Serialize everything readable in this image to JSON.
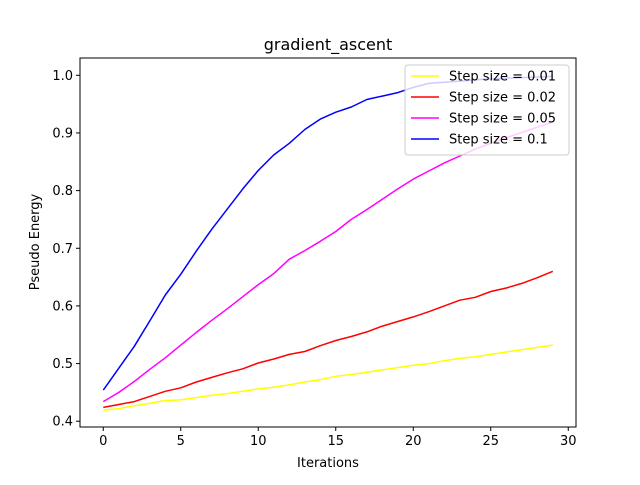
{
  "chart_data": {
    "type": "line",
    "title": "gradient_ascent",
    "xlabel": "Iterations",
    "ylabel": "Pseudo Energy",
    "xlim": [
      -1.5,
      30.5
    ],
    "ylim": [
      0.39,
      1.03
    ],
    "xticks": [
      0,
      5,
      10,
      15,
      20,
      25,
      30
    ],
    "yticks": [
      0.4,
      0.5,
      0.6,
      0.7,
      0.8,
      0.9,
      1.0
    ],
    "xtick_labels": [
      "0",
      "5",
      "10",
      "15",
      "20",
      "25",
      "30"
    ],
    "ytick_labels": [
      "0.4",
      "0.5",
      "0.6",
      "0.7",
      "0.8",
      "0.9",
      "1.0"
    ],
    "grid": false,
    "legend_position": "top-right",
    "x": [
      0,
      1,
      2,
      3,
      4,
      5,
      6,
      7,
      8,
      9,
      10,
      11,
      12,
      13,
      14,
      15,
      16,
      17,
      18,
      19,
      20,
      21,
      22,
      23,
      24,
      25,
      26,
      27,
      28,
      29
    ],
    "series": [
      {
        "name": "Step size = 0.01",
        "color": "#ffff00",
        "values": [
          0.419,
          0.422,
          0.427,
          0.431,
          0.436,
          0.437,
          0.441,
          0.445,
          0.448,
          0.452,
          0.456,
          0.459,
          0.463,
          0.468,
          0.472,
          0.478,
          0.481,
          0.485,
          0.489,
          0.493,
          0.497,
          0.5,
          0.505,
          0.509,
          0.512,
          0.516,
          0.52,
          0.524,
          0.528,
          0.532
        ]
      },
      {
        "name": "Step size = 0.02",
        "color": "#ff0000",
        "values": [
          0.424,
          0.429,
          0.434,
          0.443,
          0.452,
          0.458,
          0.468,
          0.476,
          0.484,
          0.491,
          0.501,
          0.508,
          0.516,
          0.521,
          0.531,
          0.54,
          0.547,
          0.555,
          0.565,
          0.573,
          0.581,
          0.59,
          0.6,
          0.61,
          0.615,
          0.625,
          0.631,
          0.639,
          0.649,
          0.66
        ]
      },
      {
        "name": "Step size = 0.05",
        "color": "#ff00ff",
        "values": [
          0.434,
          0.45,
          0.469,
          0.49,
          0.51,
          0.532,
          0.554,
          0.575,
          0.595,
          0.616,
          0.637,
          0.656,
          0.681,
          0.696,
          0.712,
          0.729,
          0.75,
          0.767,
          0.785,
          0.803,
          0.82,
          0.834,
          0.848,
          0.86,
          0.872,
          0.882,
          0.892,
          0.901,
          0.91,
          0.919
        ]
      },
      {
        "name": "Step size = 0.1",
        "color": "#0000ff",
        "values": [
          0.454,
          0.492,
          0.53,
          0.574,
          0.619,
          0.655,
          0.695,
          0.733,
          0.768,
          0.803,
          0.835,
          0.862,
          0.882,
          0.906,
          0.924,
          0.936,
          0.945,
          0.958,
          0.964,
          0.97,
          0.979,
          0.986,
          0.988,
          0.99,
          0.992,
          0.994,
          0.995,
          0.996,
          0.997,
          0.998
        ]
      }
    ]
  }
}
